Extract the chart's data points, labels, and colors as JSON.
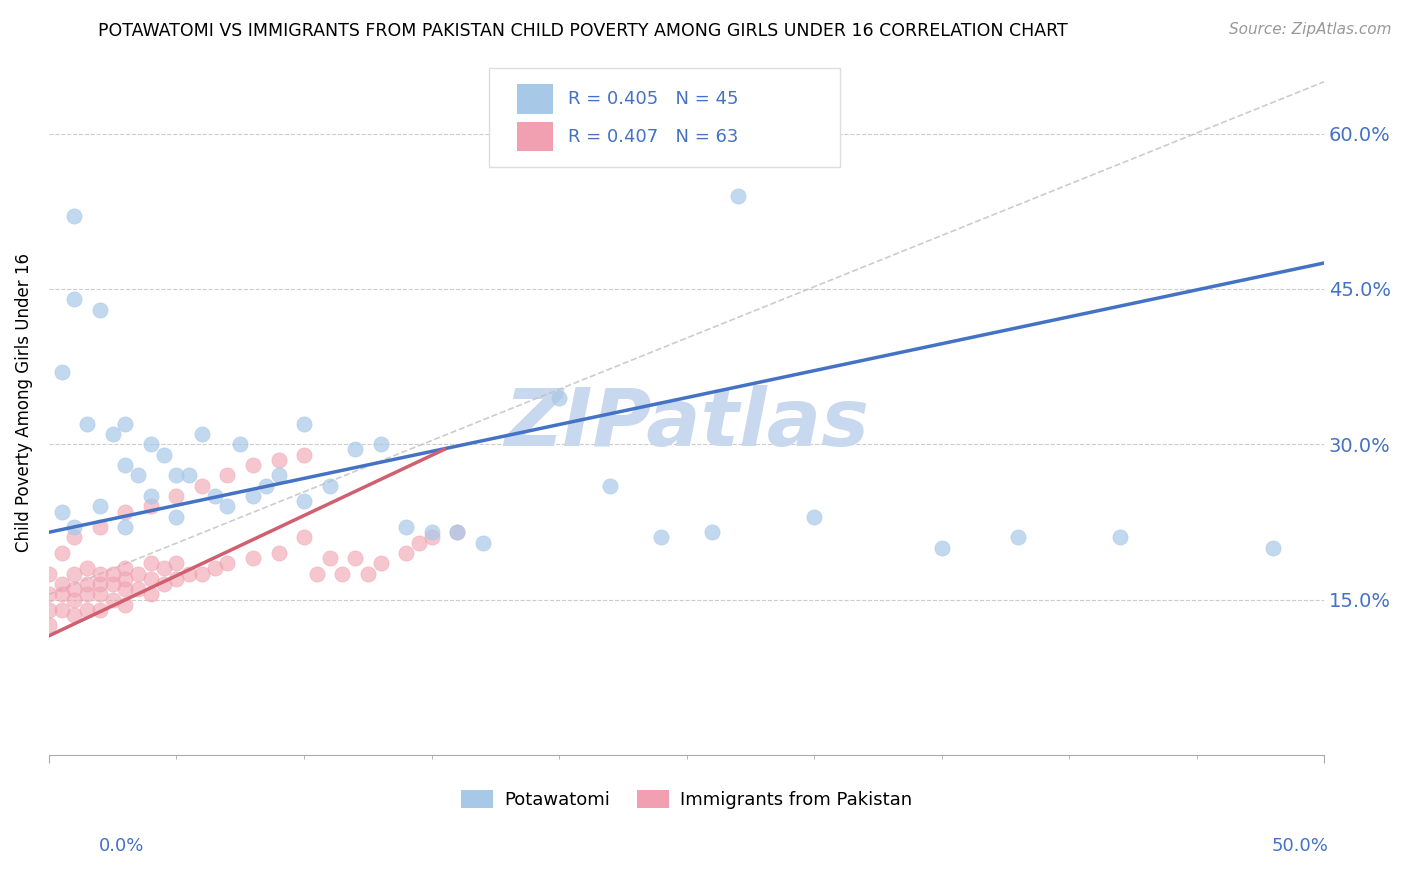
{
  "title": "POTAWATOMI VS IMMIGRANTS FROM PAKISTAN CHILD POVERTY AMONG GIRLS UNDER 16 CORRELATION CHART",
  "source": "Source: ZipAtlas.com",
  "ylabel": "Child Poverty Among Girls Under 16",
  "ylabel_ticks": [
    "60.0%",
    "45.0%",
    "30.0%",
    "15.0%"
  ],
  "ytick_vals": [
    0.6,
    0.45,
    0.3,
    0.15
  ],
  "xlim": [
    0.0,
    0.5
  ],
  "ylim": [
    0.0,
    0.68
  ],
  "color_blue": "#A8C8E8",
  "color_pink": "#F0A0B0",
  "color_blue_line": "#4472C4",
  "color_pink_line": "#D06070",
  "color_gray_dash": "#C0C0C0",
  "color_blue_text": "#4472C4",
  "watermark_color": "#C8D8EE",
  "watermark": "ZIPatlas",
  "blue_line_x0": 0.0,
  "blue_line_y0": 0.215,
  "blue_line_x1": 0.5,
  "blue_line_y1": 0.475,
  "pink_line_x0": 0.0,
  "pink_line_y0": 0.115,
  "pink_line_x1": 0.155,
  "pink_line_y1": 0.295,
  "gray_line_x0": 0.0,
  "gray_line_y0": 0.155,
  "gray_line_x1": 0.5,
  "gray_line_y1": 0.65,
  "potawatomi_x": [
    0.01,
    0.01,
    0.02,
    0.005,
    0.015,
    0.025,
    0.03,
    0.03,
    0.035,
    0.04,
    0.04,
    0.045,
    0.05,
    0.05,
    0.055,
    0.06,
    0.065,
    0.07,
    0.075,
    0.08,
    0.085,
    0.09,
    0.1,
    0.1,
    0.11,
    0.12,
    0.13,
    0.14,
    0.15,
    0.16,
    0.17,
    0.2,
    0.22,
    0.24,
    0.26,
    0.3,
    0.35,
    0.27,
    0.38,
    0.42,
    0.48,
    0.02,
    0.03,
    0.005,
    0.01
  ],
  "potawatomi_y": [
    0.52,
    0.44,
    0.43,
    0.37,
    0.32,
    0.31,
    0.32,
    0.28,
    0.27,
    0.3,
    0.25,
    0.29,
    0.27,
    0.23,
    0.27,
    0.31,
    0.25,
    0.24,
    0.3,
    0.25,
    0.26,
    0.27,
    0.32,
    0.245,
    0.26,
    0.295,
    0.3,
    0.22,
    0.215,
    0.215,
    0.205,
    0.345,
    0.26,
    0.21,
    0.215,
    0.23,
    0.2,
    0.54,
    0.21,
    0.21,
    0.2,
    0.24,
    0.22,
    0.235,
    0.22
  ],
  "pakistan_x": [
    0.0,
    0.0,
    0.0,
    0.0,
    0.005,
    0.005,
    0.005,
    0.01,
    0.01,
    0.01,
    0.01,
    0.015,
    0.015,
    0.015,
    0.015,
    0.02,
    0.02,
    0.02,
    0.02,
    0.025,
    0.025,
    0.025,
    0.03,
    0.03,
    0.03,
    0.03,
    0.035,
    0.035,
    0.04,
    0.04,
    0.04,
    0.045,
    0.045,
    0.05,
    0.05,
    0.055,
    0.06,
    0.065,
    0.07,
    0.08,
    0.09,
    0.1,
    0.105,
    0.11,
    0.115,
    0.12,
    0.125,
    0.13,
    0.14,
    0.145,
    0.15,
    0.16,
    0.005,
    0.01,
    0.02,
    0.03,
    0.04,
    0.05,
    0.06,
    0.07,
    0.08,
    0.09,
    0.1
  ],
  "pakistan_y": [
    0.175,
    0.155,
    0.14,
    0.125,
    0.165,
    0.155,
    0.14,
    0.175,
    0.16,
    0.15,
    0.135,
    0.18,
    0.165,
    0.155,
    0.14,
    0.175,
    0.165,
    0.155,
    0.14,
    0.175,
    0.165,
    0.15,
    0.18,
    0.17,
    0.16,
    0.145,
    0.175,
    0.16,
    0.185,
    0.17,
    0.155,
    0.18,
    0.165,
    0.185,
    0.17,
    0.175,
    0.175,
    0.18,
    0.185,
    0.19,
    0.195,
    0.21,
    0.175,
    0.19,
    0.175,
    0.19,
    0.175,
    0.185,
    0.195,
    0.205,
    0.21,
    0.215,
    0.195,
    0.21,
    0.22,
    0.235,
    0.24,
    0.25,
    0.26,
    0.27,
    0.28,
    0.285,
    0.29
  ]
}
